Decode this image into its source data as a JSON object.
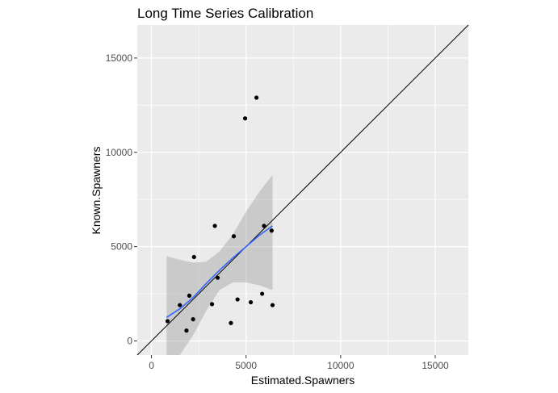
{
  "chart_data": {
    "type": "scatter",
    "title": "Long Time Series Calibration",
    "xlabel": "Estimated.Spawners",
    "ylabel": "Known.Spawners",
    "xlim": [
      -750,
      16750
    ],
    "ylim": [
      -750,
      16750
    ],
    "x_ticks": [
      0,
      5000,
      10000,
      15000
    ],
    "y_ticks": [
      0,
      5000,
      10000,
      15000
    ],
    "x_tick_labels": [
      "0",
      "5000",
      "10000",
      "15000"
    ],
    "y_tick_labels": [
      "0",
      "5000",
      "10000",
      "15000"
    ],
    "grid": true,
    "legend": "none",
    "points": [
      {
        "x": 850,
        "y": 1050
      },
      {
        "x": 1500,
        "y": 1900
      },
      {
        "x": 1850,
        "y": 550
      },
      {
        "x": 2000,
        "y": 2400
      },
      {
        "x": 2200,
        "y": 1150
      },
      {
        "x": 2250,
        "y": 4450
      },
      {
        "x": 3200,
        "y": 1950
      },
      {
        "x": 3350,
        "y": 6100
      },
      {
        "x": 3500,
        "y": 3350
      },
      {
        "x": 4200,
        "y": 950
      },
      {
        "x": 4350,
        "y": 5550
      },
      {
        "x": 4550,
        "y": 2200
      },
      {
        "x": 4950,
        "y": 11800
      },
      {
        "x": 5250,
        "y": 2050
      },
      {
        "x": 5550,
        "y": 12900
      },
      {
        "x": 5850,
        "y": 2500
      },
      {
        "x": 5950,
        "y": 6100
      },
      {
        "x": 6350,
        "y": 5850
      },
      {
        "x": 6400,
        "y": 1900
      }
    ],
    "identity_line": {
      "slope": 1,
      "intercept": 0,
      "color": "#000000"
    },
    "fit": {
      "method": "linear",
      "color": "#3366ff",
      "band_color": "#999999",
      "curve": [
        {
          "x": 800,
          "y": 1250,
          "lower": -2000,
          "upper": 4500
        },
        {
          "x": 1500,
          "y": 1700,
          "lower": -900,
          "upper": 4300
        },
        {
          "x": 2200,
          "y": 2300,
          "lower": 300,
          "upper": 4150
        },
        {
          "x": 2900,
          "y": 3050,
          "lower": 1600,
          "upper": 4200
        },
        {
          "x": 3600,
          "y": 3750,
          "lower": 2700,
          "upper": 4750
        },
        {
          "x": 4300,
          "y": 4400,
          "lower": 3100,
          "upper": 5650
        },
        {
          "x": 5000,
          "y": 5000,
          "lower": 3100,
          "upper": 6850
        },
        {
          "x": 5700,
          "y": 5600,
          "lower": 2950,
          "upper": 7900
        },
        {
          "x": 6400,
          "y": 6100,
          "lower": 2700,
          "upper": 8800
        }
      ]
    },
    "colors": {
      "panel": "#ebebeb",
      "grid": "#ffffff",
      "point": "#000000"
    }
  }
}
